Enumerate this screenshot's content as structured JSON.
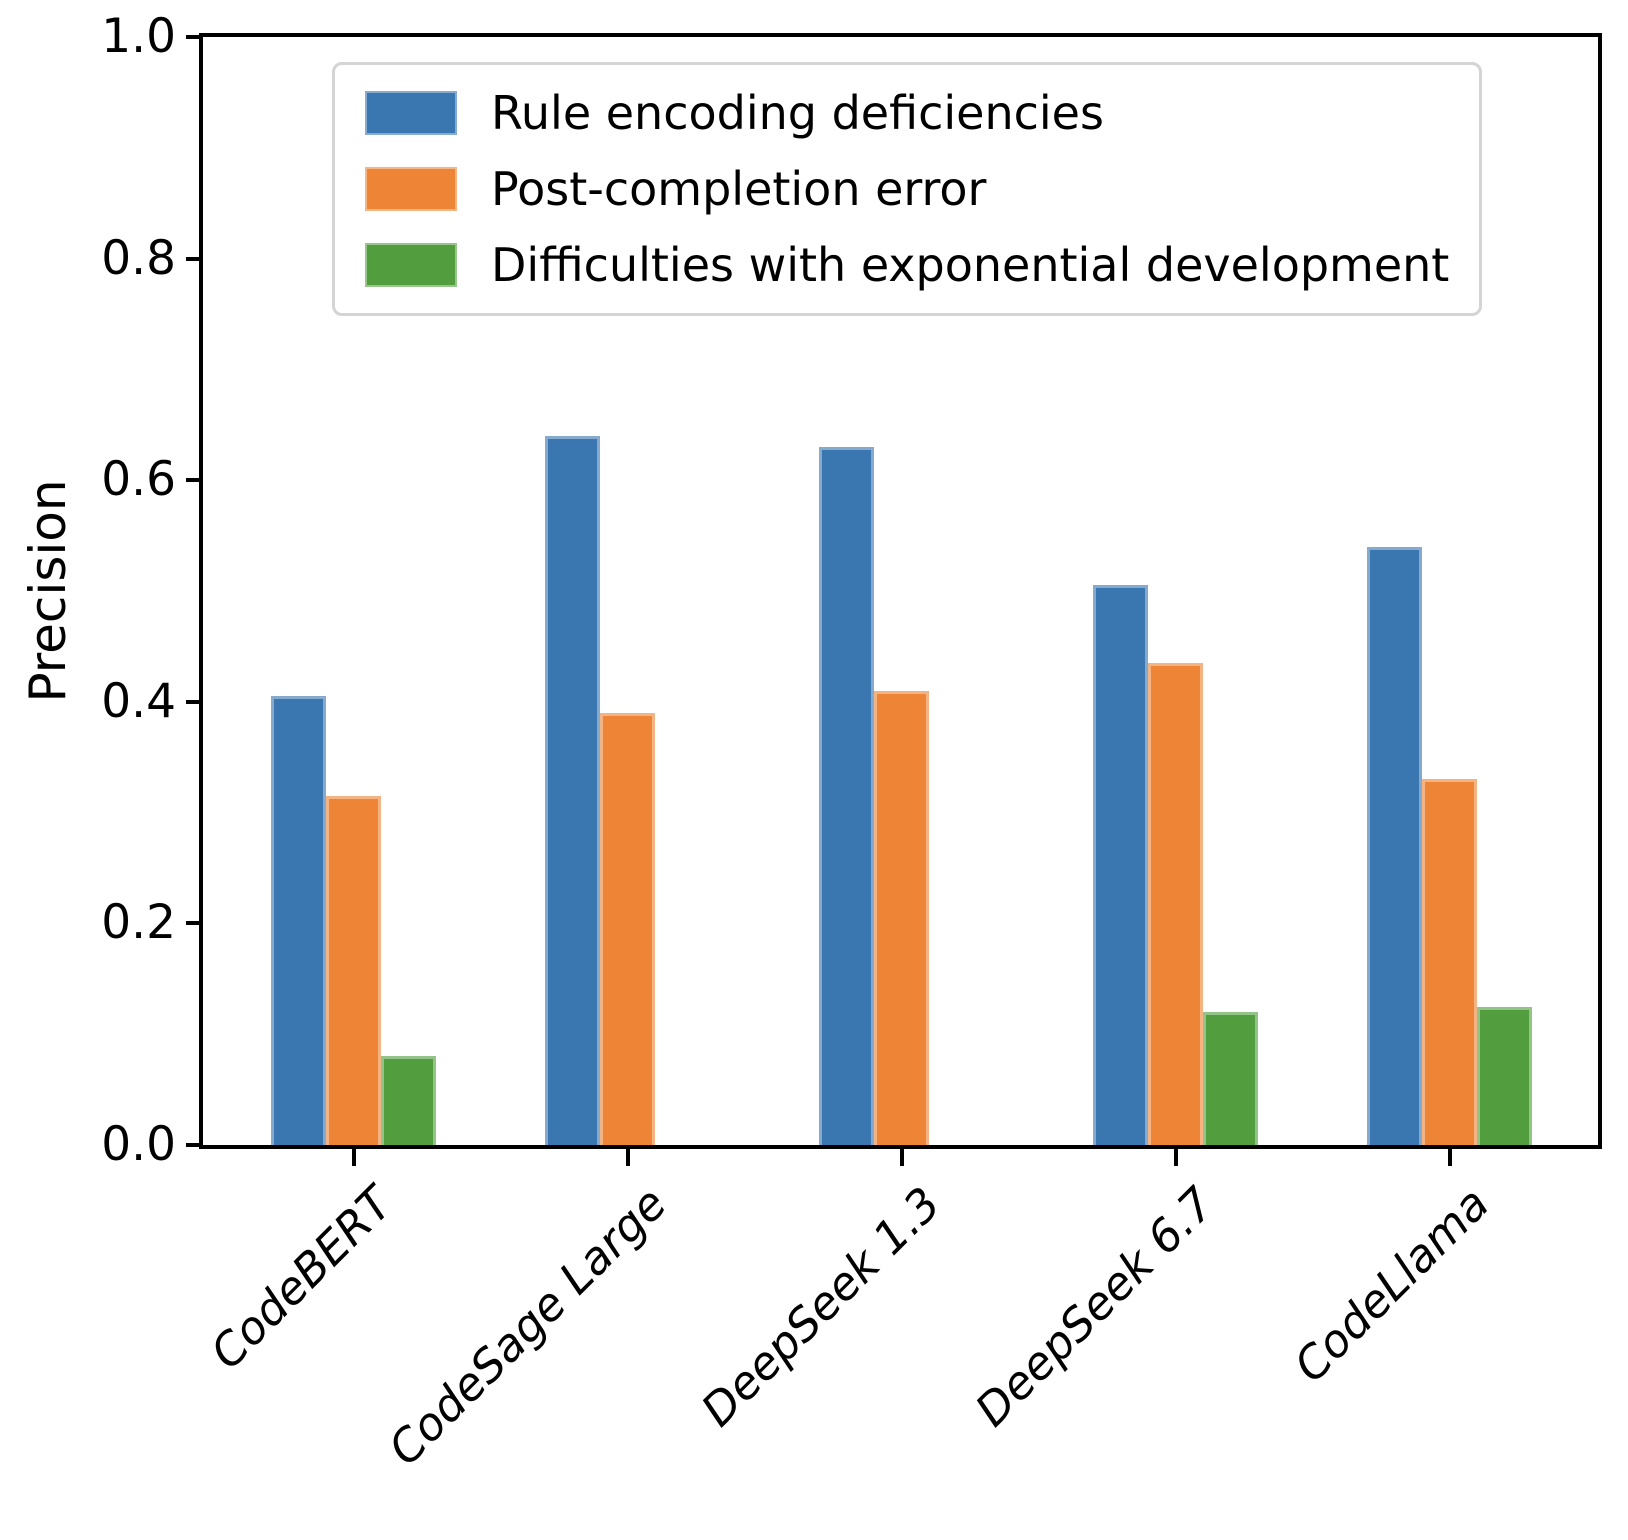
{
  "chart_data": {
    "type": "bar",
    "title": "",
    "xlabel": "",
    "ylabel": "Precision",
    "ylim": [
      0.0,
      1.0
    ],
    "yticks": [
      0.0,
      0.2,
      0.4,
      0.6,
      0.8,
      1.0
    ],
    "grid": false,
    "legend_position": "upper left",
    "categories": [
      "CodeBERT",
      "CodeSage Large",
      "DeepSeek 1.3",
      "DeepSeek 6.7",
      "CodeLlama"
    ],
    "series": [
      {
        "name": "Rule encoding deficiencies",
        "color": "#3a76af",
        "values": [
          0.405,
          0.64,
          0.63,
          0.505,
          0.54
        ]
      },
      {
        "name": "Post-completion error",
        "color": "#ee8536",
        "values": [
          0.315,
          0.39,
          0.41,
          0.435,
          0.33
        ]
      },
      {
        "name": "Difficulties with exponential development",
        "color": "#529e3e",
        "values": [
          0.08,
          0,
          0,
          0.12,
          0.125
        ]
      }
    ]
  }
}
